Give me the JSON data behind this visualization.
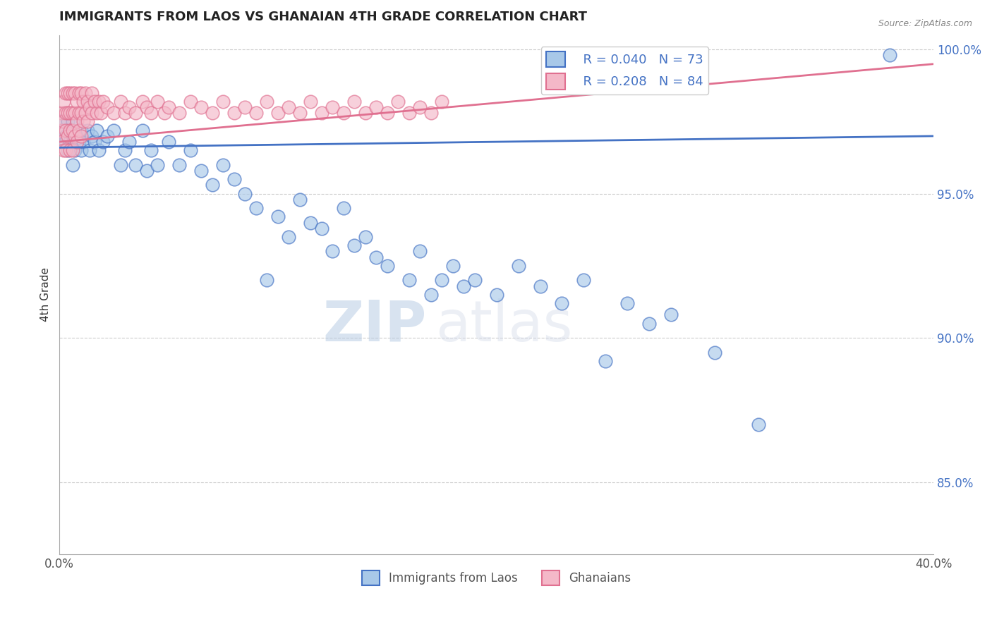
{
  "title": "IMMIGRANTS FROM LAOS VS GHANAIAN 4TH GRADE CORRELATION CHART",
  "source": "Source: ZipAtlas.com",
  "ylabel": "4th Grade",
  "xlim": [
    0.0,
    0.4
  ],
  "ylim": [
    0.825,
    1.005
  ],
  "yticks": [
    0.85,
    0.9,
    0.95,
    1.0
  ],
  "yticklabels": [
    "85.0%",
    "90.0%",
    "95.0%",
    "100.0%"
  ],
  "blue_color": "#a8c8e8",
  "pink_color": "#f4b8c8",
  "blue_line_color": "#4472c4",
  "pink_line_color": "#e07090",
  "blue_label": "Immigrants from Laos",
  "pink_label": "Ghanaians",
  "legend_r_blue": "R = 0.040",
  "legend_n_blue": "N = 73",
  "legend_r_pink": "R = 0.208",
  "legend_n_pink": "N = 84",
  "watermark_zip": "ZIP",
  "watermark_atlas": "atlas",
  "background_color": "#ffffff",
  "grid_color": "#cccccc",
  "blue_x": [
    0.001,
    0.002,
    0.003,
    0.003,
    0.004,
    0.004,
    0.005,
    0.005,
    0.006,
    0.006,
    0.007,
    0.008,
    0.009,
    0.01,
    0.01,
    0.011,
    0.013,
    0.014,
    0.015,
    0.016,
    0.017,
    0.018,
    0.02,
    0.022,
    0.025,
    0.028,
    0.03,
    0.032,
    0.035,
    0.038,
    0.04,
    0.042,
    0.045,
    0.05,
    0.055,
    0.06,
    0.065,
    0.07,
    0.075,
    0.08,
    0.085,
    0.09,
    0.095,
    0.1,
    0.105,
    0.11,
    0.115,
    0.12,
    0.125,
    0.13,
    0.135,
    0.14,
    0.145,
    0.15,
    0.16,
    0.165,
    0.17,
    0.175,
    0.18,
    0.185,
    0.19,
    0.2,
    0.21,
    0.22,
    0.23,
    0.24,
    0.25,
    0.26,
    0.27,
    0.28,
    0.3,
    0.32,
    0.38
  ],
  "blue_y": [
    0.975,
    0.972,
    0.97,
    0.968,
    0.975,
    0.965,
    0.972,
    0.968,
    0.975,
    0.96,
    0.965,
    0.97,
    0.968,
    0.972,
    0.965,
    0.968,
    0.972,
    0.965,
    0.97,
    0.968,
    0.972,
    0.965,
    0.968,
    0.97,
    0.972,
    0.96,
    0.965,
    0.968,
    0.96,
    0.972,
    0.958,
    0.965,
    0.96,
    0.968,
    0.96,
    0.965,
    0.958,
    0.953,
    0.96,
    0.955,
    0.95,
    0.945,
    0.92,
    0.942,
    0.935,
    0.948,
    0.94,
    0.938,
    0.93,
    0.945,
    0.932,
    0.935,
    0.928,
    0.925,
    0.92,
    0.93,
    0.915,
    0.92,
    0.925,
    0.918,
    0.92,
    0.915,
    0.925,
    0.918,
    0.912,
    0.92,
    0.892,
    0.912,
    0.905,
    0.908,
    0.895,
    0.87,
    0.998
  ],
  "pink_x": [
    0.001,
    0.001,
    0.001,
    0.002,
    0.002,
    0.002,
    0.003,
    0.003,
    0.003,
    0.003,
    0.004,
    0.004,
    0.004,
    0.005,
    0.005,
    0.005,
    0.005,
    0.006,
    0.006,
    0.006,
    0.006,
    0.007,
    0.007,
    0.007,
    0.008,
    0.008,
    0.008,
    0.009,
    0.009,
    0.009,
    0.01,
    0.01,
    0.01,
    0.011,
    0.011,
    0.012,
    0.012,
    0.013,
    0.013,
    0.014,
    0.015,
    0.015,
    0.016,
    0.017,
    0.018,
    0.019,
    0.02,
    0.022,
    0.025,
    0.028,
    0.03,
    0.032,
    0.035,
    0.038,
    0.04,
    0.042,
    0.045,
    0.048,
    0.05,
    0.055,
    0.06,
    0.065,
    0.07,
    0.075,
    0.08,
    0.085,
    0.09,
    0.095,
    0.1,
    0.105,
    0.11,
    0.115,
    0.12,
    0.125,
    0.13,
    0.135,
    0.14,
    0.145,
    0.15,
    0.155,
    0.16,
    0.165,
    0.17,
    0.175
  ],
  "pink_y": [
    0.978,
    0.972,
    0.968,
    0.982,
    0.975,
    0.965,
    0.985,
    0.978,
    0.972,
    0.965,
    0.985,
    0.978,
    0.97,
    0.985,
    0.978,
    0.972,
    0.965,
    0.985,
    0.978,
    0.972,
    0.965,
    0.985,
    0.978,
    0.97,
    0.982,
    0.975,
    0.968,
    0.985,
    0.978,
    0.972,
    0.985,
    0.978,
    0.97,
    0.982,
    0.975,
    0.985,
    0.978,
    0.982,
    0.975,
    0.98,
    0.985,
    0.978,
    0.982,
    0.978,
    0.982,
    0.978,
    0.982,
    0.98,
    0.978,
    0.982,
    0.978,
    0.98,
    0.978,
    0.982,
    0.98,
    0.978,
    0.982,
    0.978,
    0.98,
    0.978,
    0.982,
    0.98,
    0.978,
    0.982,
    0.978,
    0.98,
    0.978,
    0.982,
    0.978,
    0.98,
    0.978,
    0.982,
    0.978,
    0.98,
    0.978,
    0.982,
    0.978,
    0.98,
    0.978,
    0.982,
    0.978,
    0.98,
    0.978,
    0.982
  ]
}
